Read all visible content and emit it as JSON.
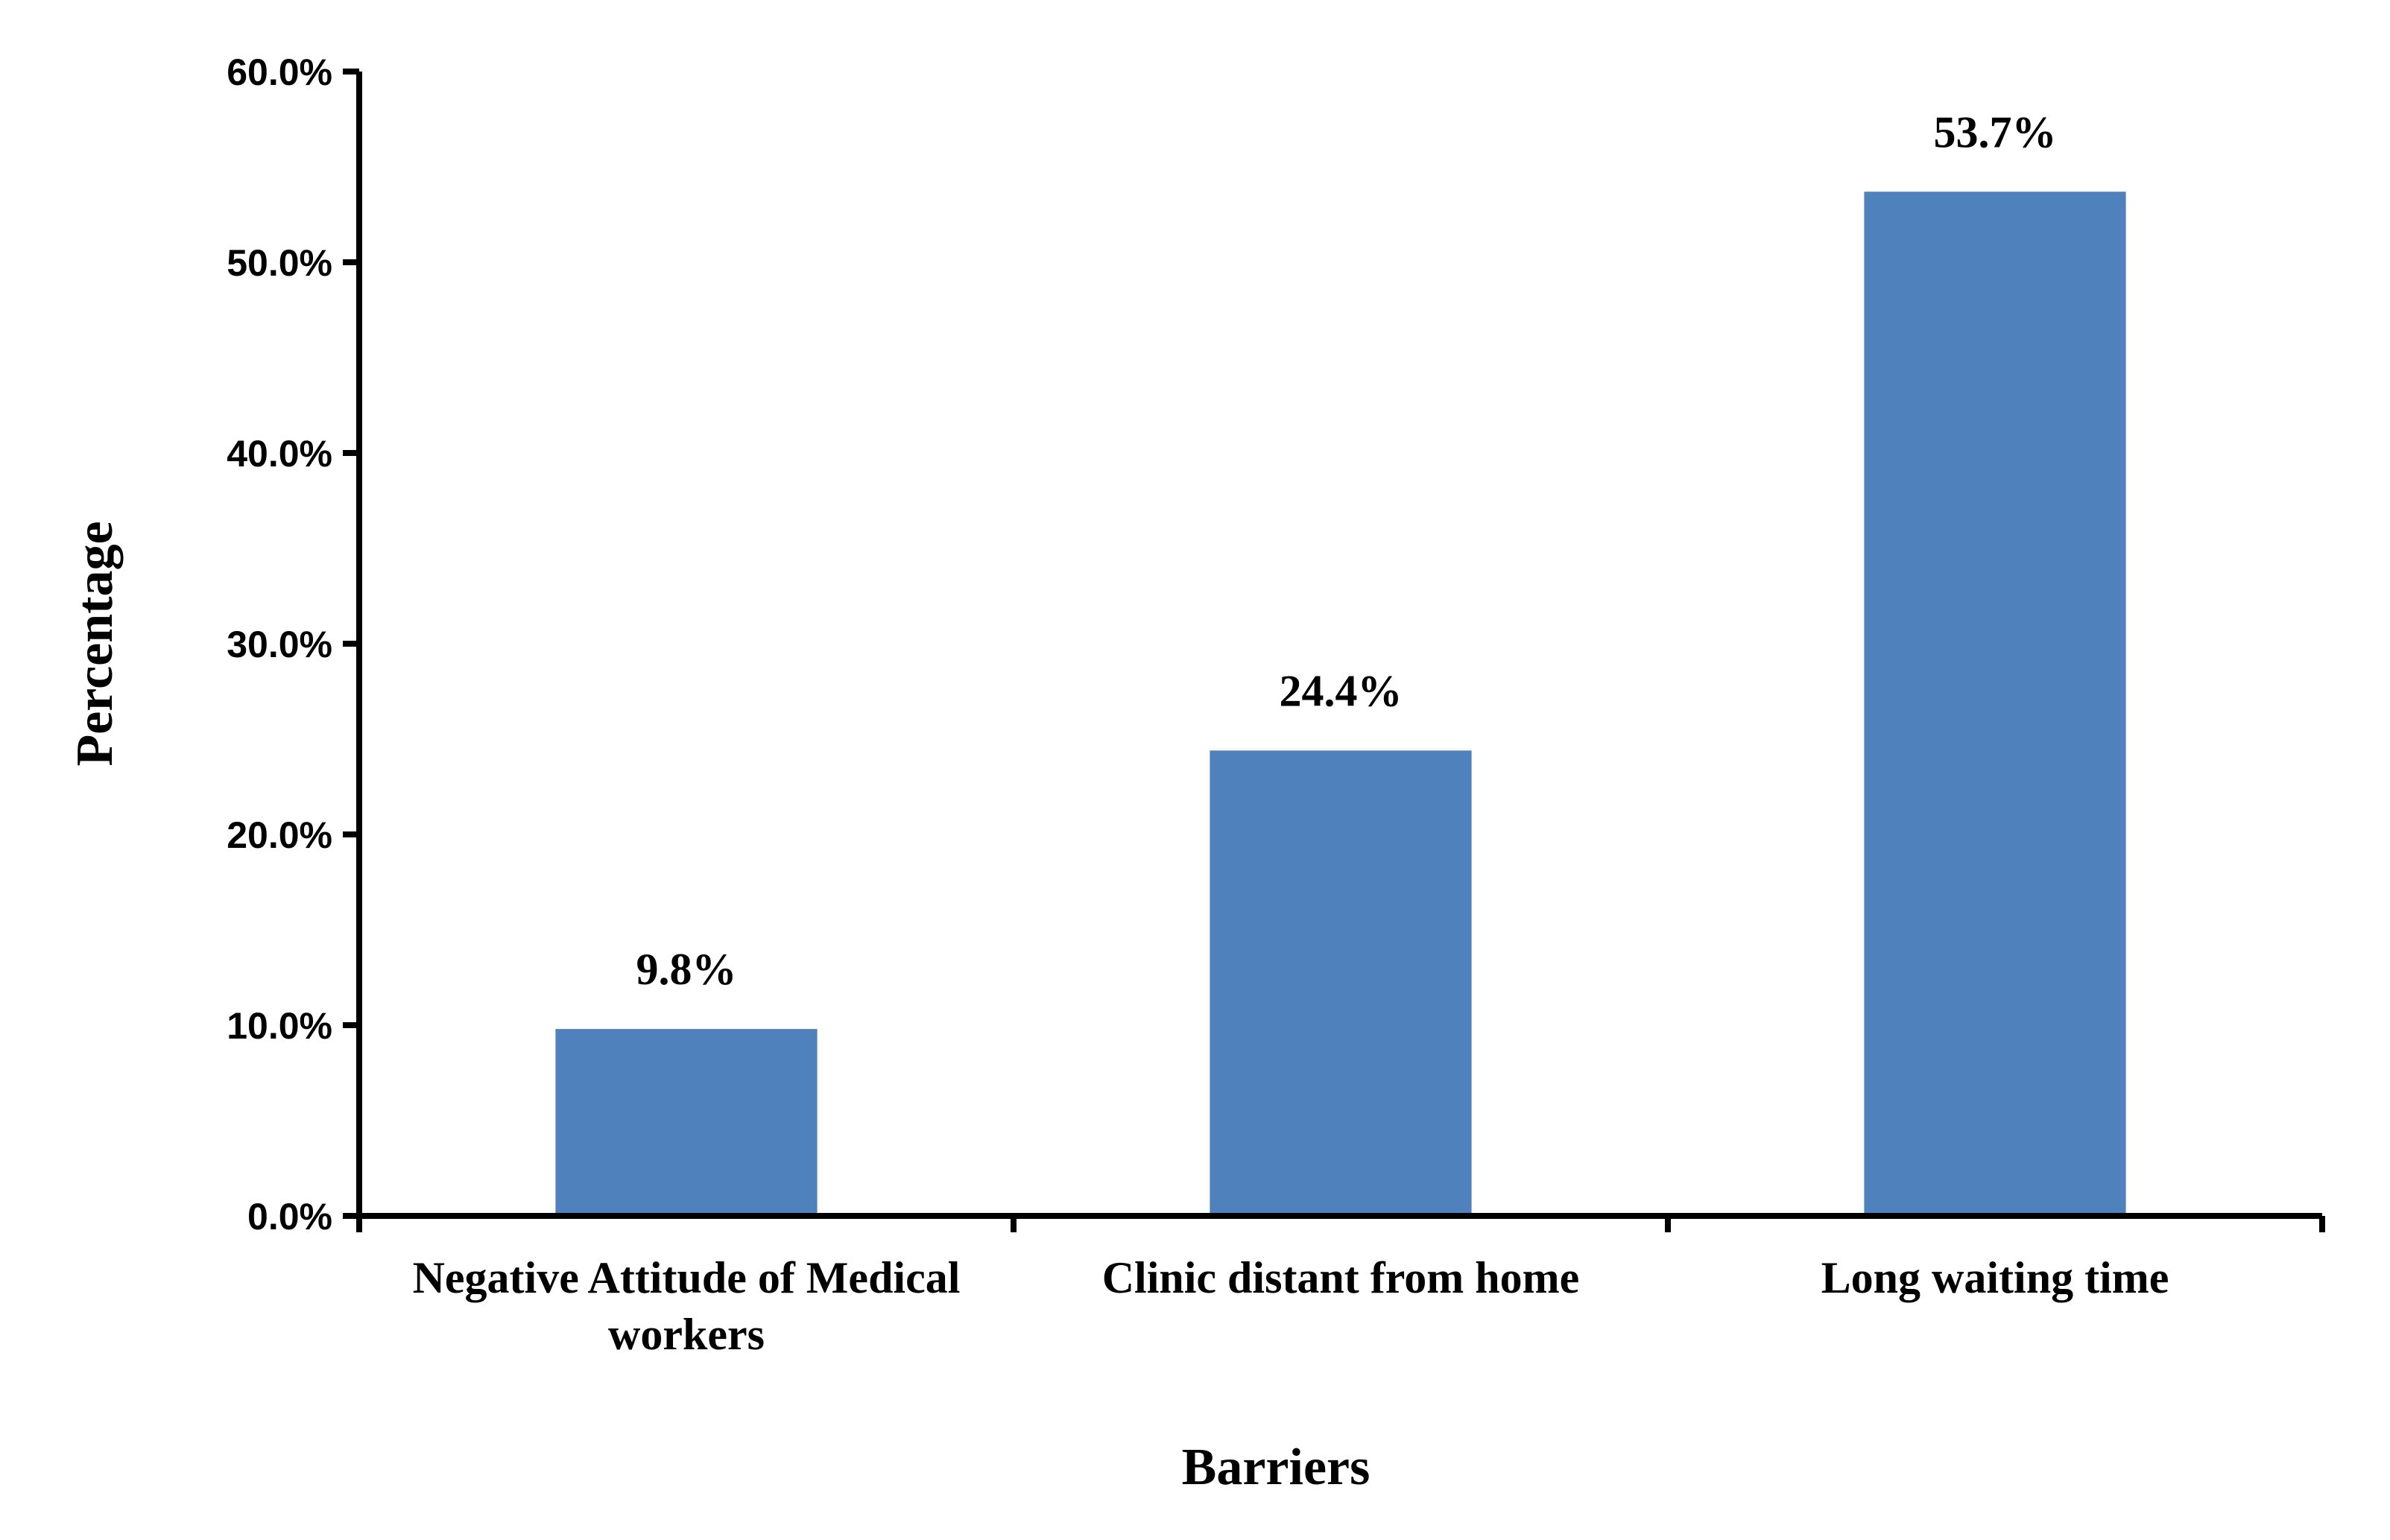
{
  "chart_data": {
    "type": "bar",
    "categories": [
      [
        "Negative Attitude of Medical",
        "workers"
      ],
      [
        "Clinic distant from home"
      ],
      [
        "Long waiting time"
      ]
    ],
    "values": [
      9.8,
      24.4,
      53.7
    ],
    "data_labels": [
      "9.8%",
      "24.4%",
      "53.7%"
    ],
    "yticks": [
      0,
      10,
      20,
      30,
      40,
      50,
      60
    ],
    "ytick_labels": [
      "0.0%",
      "10.0%",
      "20.0%",
      "30.0%",
      "40.0%",
      "50.0%",
      "60.0%"
    ],
    "ylim": [
      0,
      60
    ],
    "xlabel": "Barriers",
    "ylabel": "Percentage",
    "grid": false,
    "legend": "none",
    "bar_color": "#4f81bd"
  }
}
